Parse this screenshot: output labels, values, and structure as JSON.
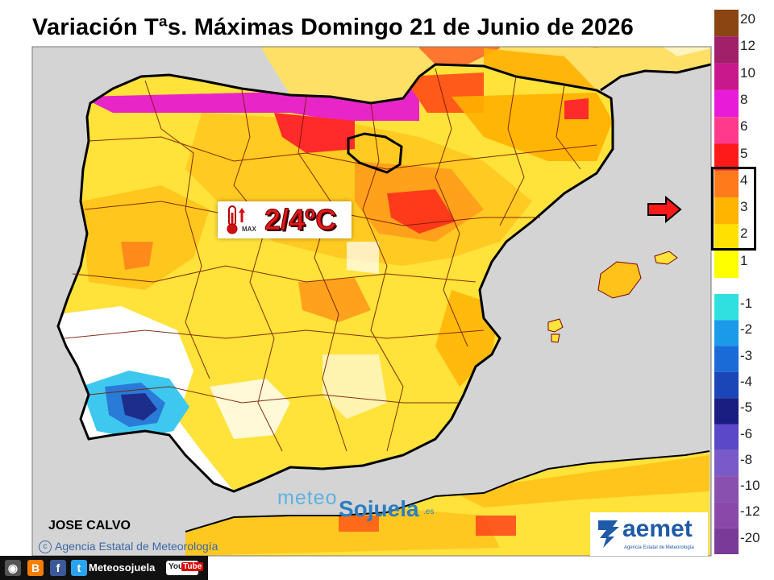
{
  "title": "Variación Tªs. Máximas Domingo 21 de Junio de 2026",
  "badge": {
    "value": "2/4ºC",
    "max_label": "MAX"
  },
  "author": "JOSE CALVO",
  "agency_credit": "Agencia Estatal de Meteorología",
  "watermark": {
    "part1": "meteo",
    "part2": "Sojuela",
    "part3": ".es"
  },
  "aemet_logo": {
    "name": "aemet",
    "subtitle": "Agencia Estatal de Meteorología"
  },
  "footer": {
    "brand": "Meteosojuela",
    "youtube_you": "You",
    "youtube_tube": "Tube"
  },
  "legend": {
    "levels": [
      {
        "label": "20",
        "color": "#8b4513"
      },
      {
        "label": "12",
        "color": "#a0206a"
      },
      {
        "label": "10",
        "color": "#c8188c"
      },
      {
        "label": "8",
        "color": "#e81cd8"
      },
      {
        "label": "6",
        "color": "#ff3a8c"
      },
      {
        "label": "5",
        "color": "#ff1a1a"
      },
      {
        "label": "4",
        "color": "#ff7a1a"
      },
      {
        "label": "3",
        "color": "#ffb400"
      },
      {
        "label": "2",
        "color": "#ffe000"
      },
      {
        "label": "1",
        "color": "#ffff00"
      },
      {
        "label": "-1",
        "color": "#30e0e0"
      },
      {
        "label": "-2",
        "color": "#1a9ae8"
      },
      {
        "label": "-3",
        "color": "#1a6ad8"
      },
      {
        "label": "-4",
        "color": "#1a46b8"
      },
      {
        "label": "-5",
        "color": "#1a1e80"
      },
      {
        "label": "-6",
        "color": "#5a48c8"
      },
      {
        "label": "-8",
        "color": "#7a5ac8"
      },
      {
        "label": "-10",
        "color": "#8a50b0"
      },
      {
        "label": "-12",
        "color": "#8a48a8"
      },
      {
        "label": "-20",
        "color": "#7a3a98"
      }
    ],
    "highlighted_range": [
      "2",
      "4"
    ]
  },
  "colors": {
    "sea": "#d4d4d4",
    "land_base": "#ffe84a",
    "accent_red": "#e31818"
  }
}
